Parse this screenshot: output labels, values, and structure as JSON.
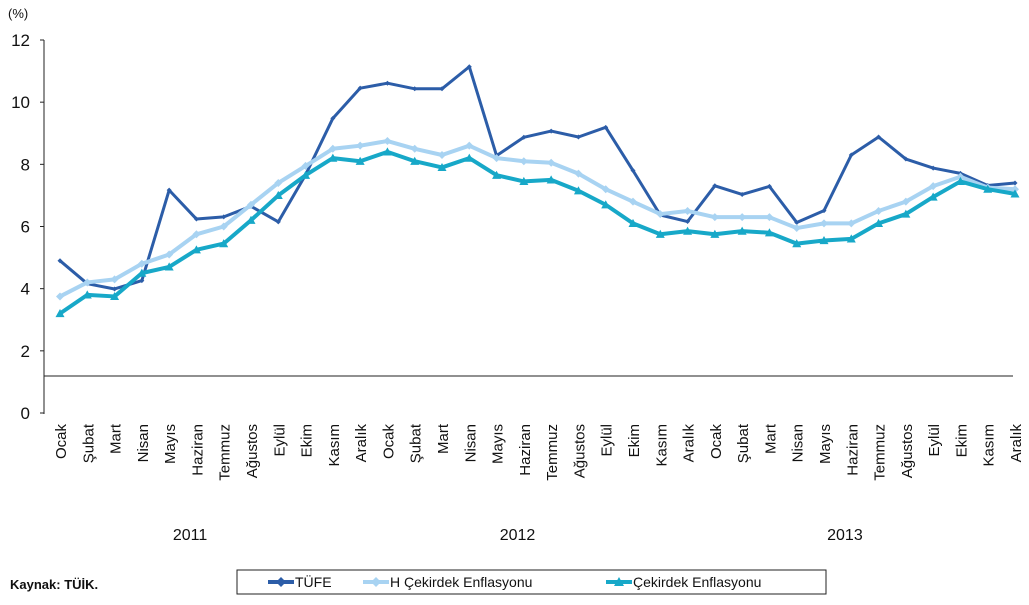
{
  "chart_data": {
    "type": "line",
    "y_unit": "(%)",
    "source": "Kaynak: TÜİK.",
    "categories": [
      "Ocak",
      "Şubat",
      "Mart",
      "Nisan",
      "Mayıs",
      "Haziran",
      "Temmuz",
      "Ağustos",
      "Eylül",
      "Ekim",
      "Kasım",
      "Aralık",
      "Ocak",
      "Şubat",
      "Mart",
      "Nisan",
      "Mayıs",
      "Haziran",
      "Temmuz",
      "Ağustos",
      "Eylül",
      "Ekim",
      "Kasım",
      "Aralık",
      "Ocak",
      "Şubat",
      "Mart",
      "Nisan",
      "Mayıs",
      "Haziran",
      "Temmuz",
      "Ağustos",
      "Eylül",
      "Ekim",
      "Kasım",
      "Aralık"
    ],
    "years": [
      "2011",
      "2012",
      "2013"
    ],
    "ylim": [
      0,
      12
    ],
    "yticks": [
      0,
      2,
      4,
      6,
      8,
      10,
      12
    ],
    "series": [
      {
        "name": "TÜFE",
        "color": "#2c5da8",
        "marker": "diamond",
        "values": [
          4.9,
          4.16,
          3.99,
          4.26,
          7.17,
          6.24,
          6.31,
          6.65,
          6.15,
          7.66,
          9.48,
          10.45,
          10.61,
          10.43,
          10.43,
          11.14,
          8.28,
          8.87,
          9.07,
          8.88,
          9.19,
          7.8,
          6.37,
          6.16,
          7.31,
          7.03,
          7.29,
          6.13,
          6.51,
          8.3,
          8.88,
          8.17,
          7.88,
          7.71,
          7.32,
          7.4
        ]
      },
      {
        "name": "H Çekirdek Enflasyonu",
        "color": "#a8d3f2",
        "marker": "diamond",
        "values": [
          3.75,
          4.2,
          4.3,
          4.8,
          5.1,
          5.75,
          6.0,
          6.7,
          7.4,
          7.95,
          8.5,
          8.6,
          8.75,
          8.5,
          8.3,
          8.6,
          8.2,
          8.1,
          8.05,
          7.7,
          7.2,
          6.8,
          6.4,
          6.5,
          6.3,
          6.3,
          6.3,
          5.95,
          6.1,
          6.1,
          6.5,
          6.8,
          7.3,
          7.6,
          7.25,
          7.2
        ]
      },
      {
        "name": "Çekirdek Enflasyonu",
        "color": "#17a8c8",
        "marker": "triangle",
        "values": [
          3.2,
          3.8,
          3.75,
          4.5,
          4.7,
          5.25,
          5.45,
          6.2,
          7.0,
          7.65,
          8.2,
          8.1,
          8.4,
          8.1,
          7.9,
          8.2,
          7.65,
          7.45,
          7.5,
          7.15,
          6.7,
          6.1,
          5.75,
          5.85,
          5.75,
          5.85,
          5.8,
          5.45,
          5.55,
          5.6,
          6.1,
          6.4,
          6.95,
          7.45,
          7.2,
          7.05
        ]
      }
    ]
  }
}
